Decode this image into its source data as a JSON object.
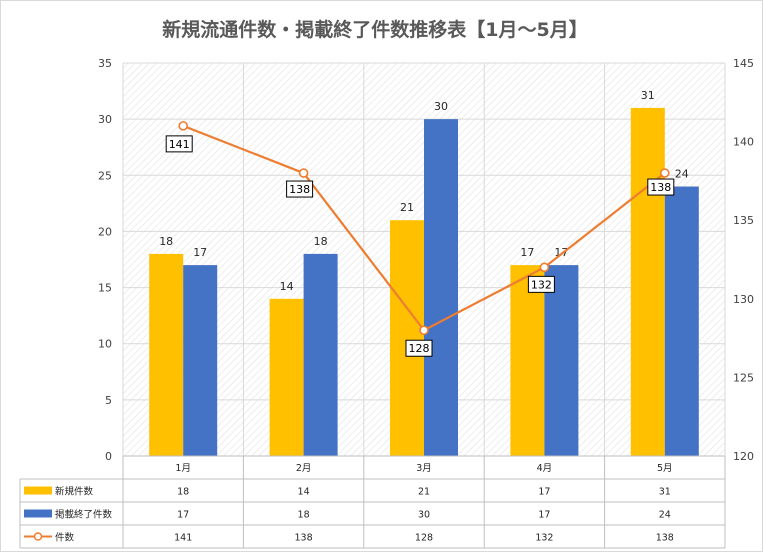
{
  "chart_data": {
    "type": "bar",
    "title": "新規流通件数・掲載終了件数推移表【1月～5月】",
    "categories": [
      "1月",
      "2月",
      "3月",
      "4月",
      "5月"
    ],
    "series": [
      {
        "name": "新規件数",
        "type": "bar",
        "axis": "left",
        "values": [
          18,
          14,
          21,
          17,
          31
        ],
        "color": "#FFC000"
      },
      {
        "name": "掲載終了件数",
        "type": "bar",
        "axis": "left",
        "values": [
          17,
          18,
          30,
          17,
          24
        ],
        "color": "#4472C4"
      },
      {
        "name": "件数",
        "type": "line",
        "axis": "right",
        "values": [
          141,
          138,
          128,
          132,
          138
        ],
        "color": "#ED7D31"
      }
    ],
    "y_left": {
      "min": 0,
      "max": 35,
      "step": 5,
      "ticks": [
        "0",
        "5",
        "10",
        "15",
        "20",
        "25",
        "30",
        "35"
      ]
    },
    "y_right": {
      "min": 120,
      "max": 145,
      "step": 5,
      "ticks": [
        "120",
        "125",
        "130",
        "135",
        "140",
        "145"
      ]
    },
    "grid": true,
    "data_table": true,
    "legend": "data-table"
  }
}
